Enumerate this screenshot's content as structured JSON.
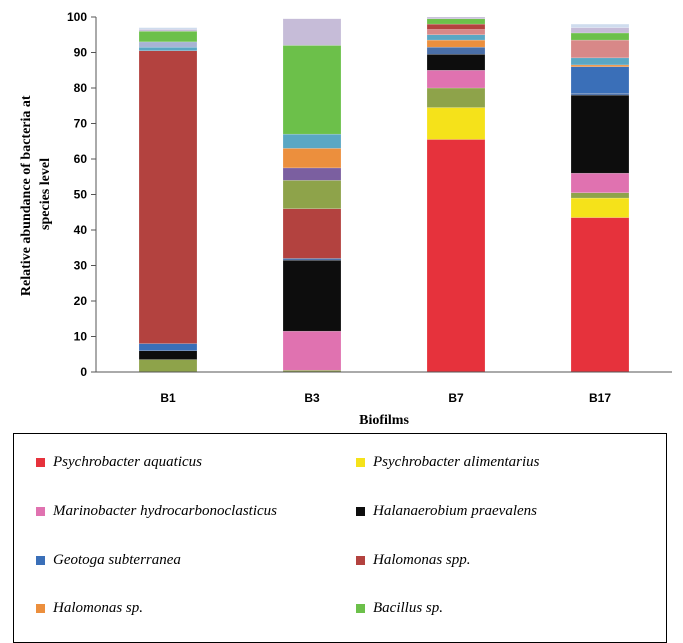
{
  "chart_data": {
    "type": "bar",
    "stacked": true,
    "xlabel": "Biofilms",
    "ylabel_lines": [
      "Relative abundance of bacteria at",
      "species level"
    ],
    "ylim": [
      0,
      100
    ],
    "yticks": [
      0,
      10,
      20,
      30,
      40,
      50,
      60,
      70,
      80,
      90,
      100
    ],
    "grid": false,
    "categories": [
      "B1",
      "B3",
      "B7",
      "B17"
    ],
    "series": [
      {
        "name": "",
        "color": "#8ea34a",
        "values": [
          3.5,
          0.5,
          0,
          0
        ]
      },
      {
        "name": "Psychrobacter aquaticus",
        "color": "#e6323c",
        "values": [
          0,
          0,
          65.5,
          43.5
        ]
      },
      {
        "name": "Psychrobacter alimentarius",
        "color": "#f5e21a",
        "values": [
          0,
          0,
          9,
          5.5
        ]
      },
      {
        "name": "",
        "color": "#8ea34a",
        "values": [
          0,
          0,
          5.5,
          1.5
        ]
      },
      {
        "name": "Marinobacter hydrocarbonoclasticus",
        "color": "#e072b0",
        "values": [
          0,
          11,
          5,
          5.5
        ]
      },
      {
        "name": "Halanaerobium praevalens",
        "color": "#0d0d0d",
        "values": [
          2.5,
          20,
          4.5,
          22
        ]
      },
      {
        "name": "",
        "color": "#4a6fa8",
        "values": [
          0,
          0.5,
          2,
          0.5
        ]
      },
      {
        "name": "Geotoga subterranea",
        "color": "#3a6fb8",
        "values": [
          2,
          0,
          0,
          7.5
        ]
      },
      {
        "name": "Halomonas spp.",
        "color": "#b3423f",
        "values": [
          82.5,
          14,
          0,
          0
        ]
      },
      {
        "name": "",
        "color": "#8ea34a",
        "values": [
          0,
          8,
          0,
          0
        ]
      },
      {
        "name": "",
        "color": "#7b5fa0",
        "values": [
          0,
          3.5,
          0,
          0
        ]
      },
      {
        "name": "Halomonas sp.",
        "color": "#ec8f3d",
        "values": [
          0,
          5.5,
          2,
          0.5
        ]
      },
      {
        "name": "",
        "color": "#5aa7c4",
        "values": [
          1,
          4,
          1.5,
          2
        ]
      },
      {
        "name": "",
        "color": "#a7b3d4",
        "values": [
          1.5,
          0,
          0,
          0
        ]
      },
      {
        "name": "",
        "color": "#d88888",
        "values": [
          0,
          0,
          1.5,
          5
        ]
      },
      {
        "name": "",
        "color": "#b3423f",
        "values": [
          0,
          0,
          1.5,
          0
        ]
      },
      {
        "name": "Bacillus sp.",
        "color": "#6cc04a",
        "values": [
          3,
          25,
          1.5,
          2
        ]
      },
      {
        "name": "",
        "color": "#c6bcd8",
        "values": [
          0.5,
          7.5,
          0.5,
          1.5
        ]
      },
      {
        "name": "",
        "color": "#cfdcee",
        "values": [
          0.5,
          0,
          0,
          1
        ]
      }
    ]
  },
  "legend": [
    {
      "label": "Psychrobacter aquaticus",
      "color": "#e6323c"
    },
    {
      "label": "Psychrobacter alimentarius",
      "color": "#f5e21a"
    },
    {
      "label": "Marinobacter hydrocarbonoclasticus",
      "color": "#e072b0"
    },
    {
      "label": "Halanaerobium praevalens",
      "color": "#0d0d0d"
    },
    {
      "label": "Geotoga subterranea",
      "color": "#3a6fb8"
    },
    {
      "label": "Halomonas spp.",
      "color": "#b3423f"
    },
    {
      "label": "Halomonas sp.",
      "color": "#ec8f3d"
    },
    {
      "label": "Bacillus sp.",
      "color": "#6cc04a"
    }
  ]
}
